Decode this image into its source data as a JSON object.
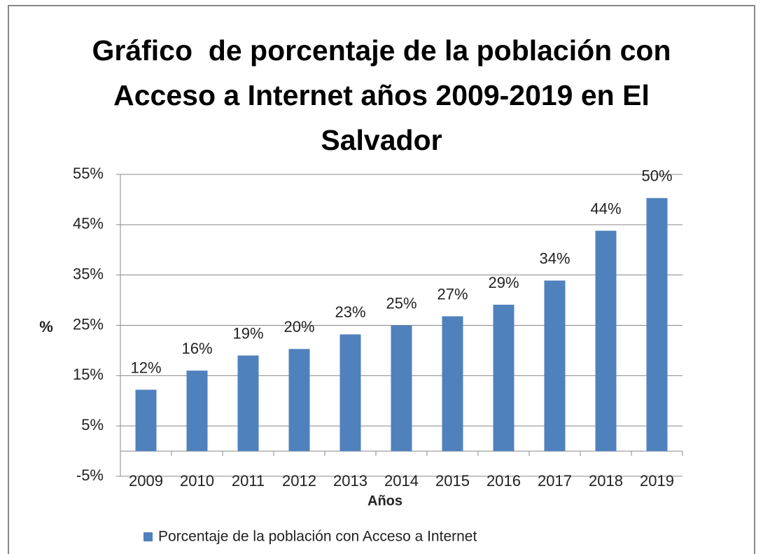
{
  "chart_data": {
    "type": "bar",
    "title": "Gráfico  de porcentaje de la población con Acceso a Internet años 2009-2019 en El Salvador",
    "y_label": "%",
    "x_label": "Años",
    "categories": [
      "2009",
      "2010",
      "2011",
      "2012",
      "2013",
      "2014",
      "2015",
      "2016",
      "2017",
      "2018",
      "2019"
    ],
    "series": [
      {
        "name": "Porcentaje de la población con Acceso a Internet",
        "color": "#4f81bd",
        "values": [
          12.2,
          16,
          19,
          20.3,
          23.2,
          25,
          26.8,
          29.1,
          33.9,
          43.8,
          50.3
        ],
        "value_labels": [
          "12%",
          "16%",
          "19%",
          "20%",
          "23%",
          "25%",
          "27%",
          "29%",
          "34%",
          "44%",
          "50%"
        ]
      }
    ],
    "ylim": [
      -5,
      55
    ],
    "yticks": [
      {
        "value": -5,
        "label": "-5%"
      },
      {
        "value": 5,
        "label": "5%"
      },
      {
        "value": 15,
        "label": "15%"
      },
      {
        "value": 25,
        "label": "25%"
      },
      {
        "value": 35,
        "label": "35%"
      },
      {
        "value": 45,
        "label": "45%"
      },
      {
        "value": 55,
        "label": "55%"
      }
    ],
    "grid": true,
    "legend": "bottom"
  }
}
